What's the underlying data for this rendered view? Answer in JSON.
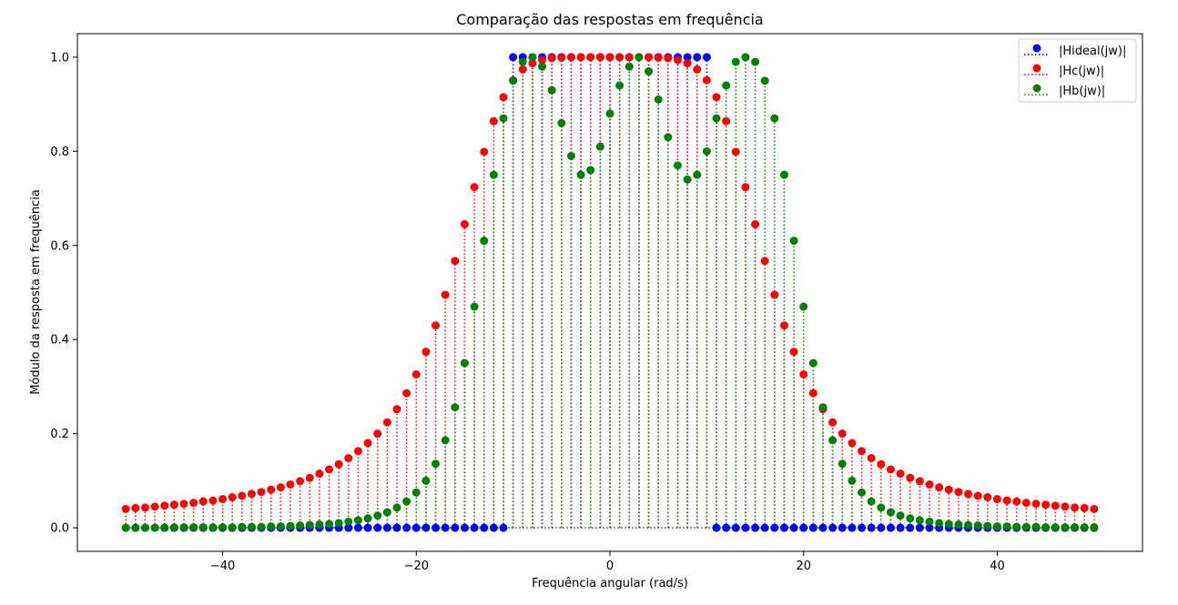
{
  "chart_data": {
    "type": "scatter",
    "title": "Comparação das respostas em frequência",
    "xlabel": "Frequência angular (rad/s)",
    "ylabel": "Módulo da resposta em frequência",
    "xlim": [
      -55,
      55
    ],
    "ylim": [
      -0.05,
      1.05
    ],
    "xticks": [
      -40,
      -20,
      0,
      20,
      40
    ],
    "xtick_labels": [
      "−40",
      "−20",
      "0",
      "20",
      "40"
    ],
    "yticks": [
      0.0,
      0.2,
      0.4,
      0.6,
      0.8,
      1.0
    ],
    "ytick_labels": [
      "0.0",
      "0.2",
      "0.4",
      "0.6",
      "0.8",
      "1.0"
    ],
    "grid": false,
    "legend_position": "top-right",
    "x_range": [
      -50,
      50
    ],
    "x_step": 1,
    "series": [
      {
        "name": "|Hideal(jw)|",
        "color": "#0000ff",
        "marker": "circle",
        "stems": "dotted",
        "values": [
          0,
          0,
          0,
          0,
          0,
          0,
          0,
          0,
          0,
          0,
          0,
          0,
          0,
          0,
          0,
          0,
          0,
          0,
          0,
          0,
          0,
          0,
          0,
          0,
          0,
          0,
          0,
          0,
          0,
          0,
          0,
          0,
          0,
          0,
          0,
          0,
          0,
          0,
          0,
          0,
          1,
          1,
          1,
          1,
          1,
          1,
          1,
          1,
          1,
          1,
          1,
          1,
          1,
          1,
          1,
          1,
          1,
          1,
          1,
          1,
          1,
          0,
          0,
          0,
          0,
          0,
          0,
          0,
          0,
          0,
          0,
          0,
          0,
          0,
          0,
          0,
          0,
          0,
          0,
          0,
          0,
          0,
          0,
          0,
          0,
          0,
          0,
          0,
          0,
          0,
          0,
          0,
          0,
          0,
          0,
          0,
          0,
          0,
          0,
          0,
          0
        ]
      },
      {
        "name": "|Hc(jw)|",
        "color": "#ff0000",
        "marker": "circle",
        "stems": "dotted",
        "values": [
          0.04,
          0.042,
          0.043,
          0.045,
          0.047,
          0.049,
          0.051,
          0.053,
          0.056,
          0.058,
          0.061,
          0.065,
          0.068,
          0.072,
          0.076,
          0.081,
          0.086,
          0.092,
          0.099,
          0.106,
          0.115,
          0.124,
          0.135,
          0.148,
          0.163,
          0.18,
          0.2,
          0.224,
          0.252,
          0.286,
          0.326,
          0.374,
          0.43,
          0.495,
          0.567,
          0.645,
          0.724,
          0.799,
          0.864,
          0.915,
          0.951,
          0.974,
          0.987,
          0.994,
          0.998,
          0.999,
          1.0,
          1.0,
          1.0,
          1.0,
          1.0,
          1.0,
          1.0,
          1.0,
          1.0,
          0.999,
          0.998,
          0.994,
          0.987,
          0.974,
          0.951,
          0.915,
          0.864,
          0.799,
          0.724,
          0.645,
          0.567,
          0.495,
          0.43,
          0.374,
          0.326,
          0.286,
          0.252,
          0.224,
          0.2,
          0.18,
          0.163,
          0.148,
          0.135,
          0.124,
          0.115,
          0.106,
          0.099,
          0.092,
          0.086,
          0.081,
          0.076,
          0.072,
          0.068,
          0.065,
          0.061,
          0.058,
          0.056,
          0.053,
          0.051,
          0.049,
          0.047,
          0.045,
          0.043,
          0.042,
          0.04
        ]
      },
      {
        "name": "|Hb(jw)|",
        "color": "#008000",
        "marker": "circle",
        "stems": "dotted",
        "values": [
          0.0,
          0.0,
          0.0,
          0.0,
          0.0,
          0.001,
          0.001,
          0.001,
          0.001,
          0.001,
          0.001,
          0.001,
          0.002,
          0.002,
          0.002,
          0.003,
          0.003,
          0.004,
          0.005,
          0.006,
          0.007,
          0.008,
          0.01,
          0.013,
          0.016,
          0.02,
          0.026,
          0.033,
          0.043,
          0.056,
          0.075,
          0.1,
          0.136,
          0.186,
          0.256,
          0.35,
          0.47,
          0.61,
          0.75,
          0.87,
          0.95,
          0.99,
          1.0,
          0.98,
          0.93,
          0.86,
          0.79,
          0.75,
          0.76,
          0.81,
          0.88,
          0.94,
          0.98,
          1.0,
          0.97,
          0.91,
          0.83,
          0.77,
          0.74,
          0.75,
          0.8,
          0.87,
          0.94,
          0.99,
          1.0,
          0.99,
          0.95,
          0.87,
          0.75,
          0.61,
          0.47,
          0.35,
          0.256,
          0.186,
          0.136,
          0.1,
          0.075,
          0.056,
          0.043,
          0.033,
          0.026,
          0.02,
          0.016,
          0.013,
          0.01,
          0.008,
          0.007,
          0.006,
          0.005,
          0.004,
          0.003,
          0.003,
          0.002,
          0.002,
          0.002,
          0.001,
          0.001,
          0.001,
          0.001,
          0.001,
          0.001
        ]
      }
    ]
  }
}
